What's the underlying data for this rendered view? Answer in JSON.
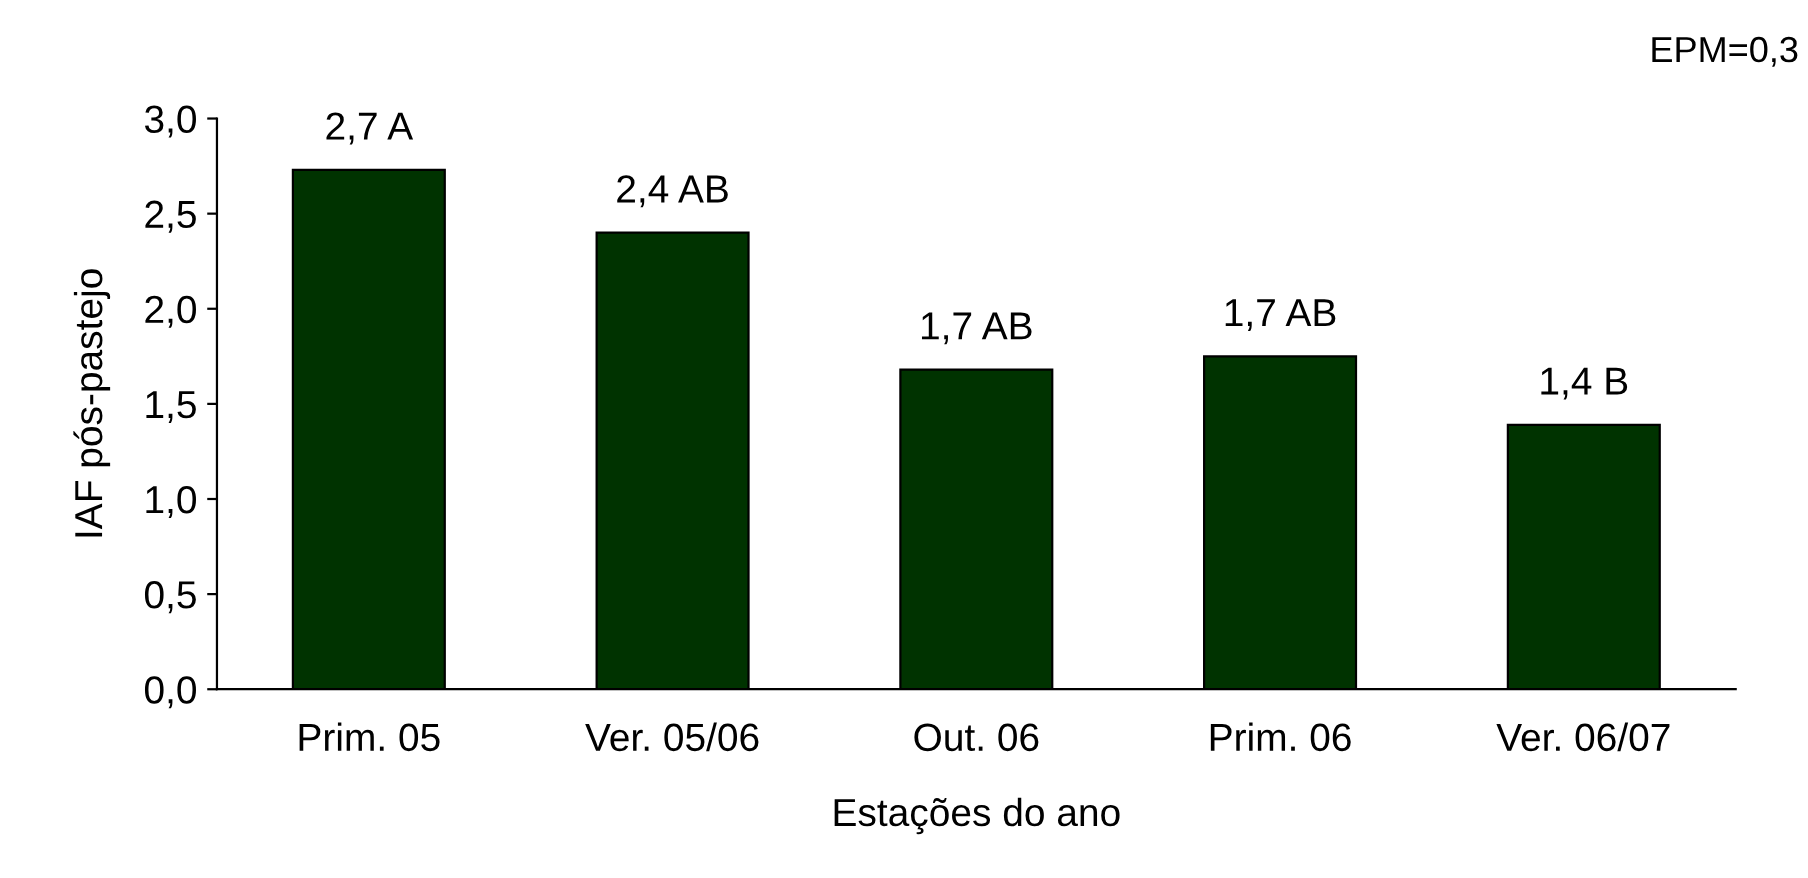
{
  "chart_data": {
    "type": "bar",
    "categories": [
      "Prim. 05",
      "Ver. 05/06",
      "Out. 06",
      "Prim. 06",
      "Ver. 06/07"
    ],
    "values": [
      2.73,
      2.4,
      1.68,
      1.75,
      1.39
    ],
    "value_labels": [
      "2,7 A",
      "2,4 AB",
      "1,7 AB",
      "1,7 AB",
      "1,4 B"
    ],
    "color": "#003300",
    "xlabel": "Estações do ano",
    "ylabel": "IAF pós-pastejo",
    "annotations": [
      "EPM=0,3"
    ],
    "ylim": [
      0,
      3
    ],
    "yticks": [
      {
        "value": 0,
        "label": "0,0"
      },
      {
        "value": 0.5,
        "label": "0,5"
      },
      {
        "value": 1,
        "label": "1,0"
      },
      {
        "value": 1.5,
        "label": "1,5"
      },
      {
        "value": 2,
        "label": "2,0"
      },
      {
        "value": 2.5,
        "label": "2,5"
      },
      {
        "value": 3,
        "label": "3,0"
      }
    ],
    "grid": false,
    "legend": false
  }
}
